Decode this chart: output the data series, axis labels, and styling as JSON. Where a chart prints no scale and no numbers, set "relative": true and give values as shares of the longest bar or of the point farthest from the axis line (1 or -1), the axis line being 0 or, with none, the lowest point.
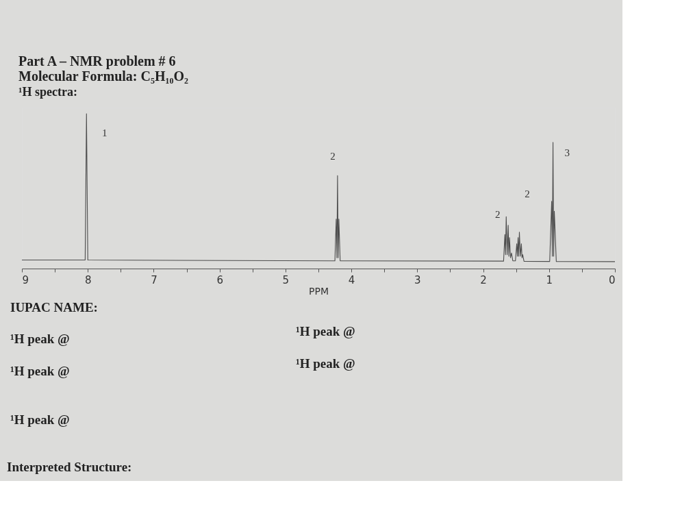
{
  "chart_data": {
    "type": "line",
    "title": "Part A – NMR problem # 6",
    "subtitle": "Molecular Formula: C₅H₁₀O₂",
    "xlabel": "PPM",
    "relative": true,
    "color": "#4d4d4d",
    "x": [
      9.0,
      8.04,
      8.02,
      8.0,
      4.25,
      4.23,
      4.22,
      4.21,
      4.2,
      4.19,
      4.17,
      1.69,
      1.67,
      1.66,
      1.65,
      1.635,
      1.62,
      1.61,
      1.6,
      1.585,
      1.57,
      1.55,
      1.51,
      1.49,
      1.48,
      1.47,
      1.46,
      1.45,
      1.435,
      1.42,
      1.41,
      1.4,
      1.38,
      0.99,
      0.96,
      0.95,
      0.94,
      0.93,
      0.92,
      0.89,
      0.0
    ],
    "values": [
      0.055,
      0.055,
      1.0,
      0.055,
      0.05,
      0.32,
      0.07,
      0.6,
      0.07,
      0.32,
      0.05,
      0.048,
      0.22,
      0.09,
      0.335,
      0.09,
      0.28,
      0.08,
      0.2,
      0.07,
      0.1,
      0.05,
      0.05,
      0.16,
      0.08,
      0.2,
      0.08,
      0.235,
      0.08,
      0.16,
      0.07,
      0.09,
      0.047,
      0.046,
      0.435,
      0.08,
      0.815,
      0.08,
      0.37,
      0.046,
      0.045
    ],
    "xlim": [
      9,
      0
    ],
    "xticks": [
      9,
      {
        "value": 8.5,
        "label": null
      },
      8,
      {
        "value": 7.5,
        "label": null
      },
      7,
      {
        "value": 6.5,
        "label": null
      },
      6,
      {
        "value": 5.5,
        "label": null
      },
      5,
      {
        "value": 4.5,
        "label": null
      },
      4,
      {
        "value": 3.5,
        "label": null
      },
      3,
      {
        "value": 2.5,
        "label": null
      },
      2,
      {
        "value": 1.5,
        "label": null
      },
      1,
      {
        "value": 0.5,
        "label": null
      },
      0
    ],
    "annotations": [
      "¹H spectra:",
      "1",
      "2",
      "2",
      "2",
      "3",
      "IUPAC NAME:",
      "¹H peak @",
      "¹H peak @",
      "¹H peak @",
      "¹H peak @",
      "¹H peak @",
      "Interpreted Structure:"
    ]
  }
}
